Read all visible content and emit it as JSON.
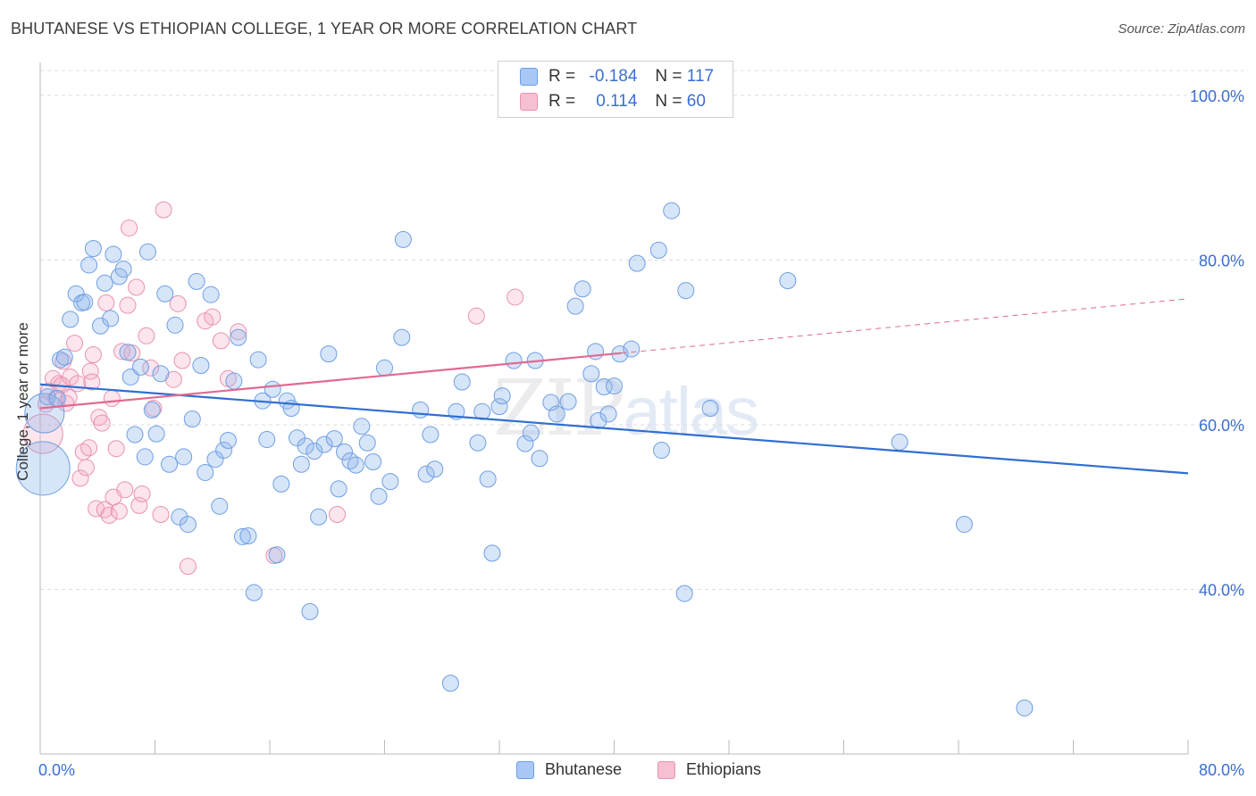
{
  "header": {
    "title": "BHUTANESE VS ETHIOPIAN COLLEGE, 1 YEAR OR MORE CORRELATION CHART",
    "source": "Source: ZipAtlas.com"
  },
  "legend": {
    "rows": [
      {
        "r_label": "R =",
        "r_value": "-0.184",
        "n_label": "N =",
        "n_value": "117",
        "color": "#a9c8f5",
        "border": "#6e9fe3"
      },
      {
        "r_label": "R =",
        "r_value": "0.114",
        "n_label": "N =",
        "n_value": "60",
        "color": "#f7bfd2",
        "border": "#e892b0"
      }
    ],
    "bottom": [
      "Bhutanese",
      "Ethiopians"
    ]
  },
  "watermark": {
    "zip": "ZIP",
    "atlas": "atlas"
  },
  "chart_data": {
    "type": "scatter",
    "title": "BHUTANESE VS ETHIOPIAN COLLEGE, 1 YEAR OR MORE CORRELATION CHART",
    "xlabel": "",
    "ylabel": "College, 1 year or more",
    "xlim": [
      0,
      80
    ],
    "ylim": [
      20,
      104
    ],
    "x_tick_labels": [
      "0.0%",
      "80.0%"
    ],
    "y_tick_labels": [
      "100.0%",
      "80.0%",
      "60.0%",
      "40.0%"
    ],
    "y_ticks": [
      100,
      80,
      60,
      40
    ],
    "grid": true,
    "legend_position": "top-center",
    "colors": {
      "bhutanese_fill": "rgba(140,180,235,0.35)",
      "bhutanese_stroke": "#6e9fe3",
      "bhutanese_line": "#2f6fd0",
      "ethiopians_fill": "rgba(245,170,195,0.30)",
      "ethiopians_stroke": "#e892b0",
      "ethiopians_line": "#e06a92",
      "tick_label": "#3a6fd0"
    },
    "series": [
      {
        "name": "Bhutanese",
        "trend": {
          "x": [
            0,
            80
          ],
          "y": [
            64.9,
            54.1
          ]
        },
        "points": [
          [
            0.2,
            54.7
          ],
          [
            0.3,
            61.4
          ],
          [
            0.5,
            63.4
          ],
          [
            1.2,
            63.2
          ],
          [
            1.4,
            67.9
          ],
          [
            1.7,
            68.2
          ],
          [
            2.1,
            72.8
          ],
          [
            2.5,
            75.9
          ],
          [
            2.9,
            74.8
          ],
          [
            3.1,
            74.9
          ],
          [
            3.4,
            79.4
          ],
          [
            3.7,
            81.4
          ],
          [
            4.2,
            72.0
          ],
          [
            4.5,
            77.2
          ],
          [
            4.9,
            72.9
          ],
          [
            5.1,
            80.7
          ],
          [
            5.5,
            78.0
          ],
          [
            5.8,
            78.9
          ],
          [
            6.1,
            68.8
          ],
          [
            6.3,
            65.8
          ],
          [
            6.6,
            58.8
          ],
          [
            7.0,
            67.0
          ],
          [
            7.3,
            56.1
          ],
          [
            7.5,
            81.0
          ],
          [
            7.8,
            61.8
          ],
          [
            8.1,
            58.9
          ],
          [
            8.4,
            66.2
          ],
          [
            8.7,
            75.9
          ],
          [
            9.0,
            55.2
          ],
          [
            9.4,
            72.1
          ],
          [
            9.7,
            48.8
          ],
          [
            10.0,
            56.1
          ],
          [
            10.3,
            47.9
          ],
          [
            10.6,
            60.7
          ],
          [
            10.9,
            77.4
          ],
          [
            11.2,
            67.2
          ],
          [
            11.5,
            54.2
          ],
          [
            11.9,
            75.8
          ],
          [
            12.2,
            55.8
          ],
          [
            12.5,
            50.1
          ],
          [
            12.8,
            56.9
          ],
          [
            13.1,
            58.1
          ],
          [
            13.5,
            65.3
          ],
          [
            13.8,
            70.6
          ],
          [
            14.1,
            46.4
          ],
          [
            14.5,
            46.5
          ],
          [
            14.9,
            39.6
          ],
          [
            15.2,
            67.9
          ],
          [
            15.5,
            62.9
          ],
          [
            15.8,
            58.2
          ],
          [
            16.2,
            64.3
          ],
          [
            16.5,
            44.2
          ],
          [
            16.8,
            52.8
          ],
          [
            17.2,
            62.9
          ],
          [
            17.5,
            62.0
          ],
          [
            17.9,
            58.4
          ],
          [
            18.2,
            55.2
          ],
          [
            18.5,
            57.4
          ],
          [
            18.8,
            37.3
          ],
          [
            19.1,
            56.8
          ],
          [
            19.4,
            48.8
          ],
          [
            19.8,
            57.6
          ],
          [
            20.1,
            68.6
          ],
          [
            20.5,
            58.3
          ],
          [
            20.8,
            52.2
          ],
          [
            21.2,
            56.7
          ],
          [
            21.6,
            55.6
          ],
          [
            22.0,
            55.1
          ],
          [
            22.4,
            59.8
          ],
          [
            22.8,
            57.8
          ],
          [
            23.2,
            55.5
          ],
          [
            23.6,
            51.3
          ],
          [
            24.0,
            66.9
          ],
          [
            24.4,
            53.1
          ],
          [
            25.2,
            70.6
          ],
          [
            25.3,
            82.5
          ],
          [
            26.5,
            61.8
          ],
          [
            26.9,
            54.0
          ],
          [
            27.2,
            58.8
          ],
          [
            27.5,
            54.6
          ],
          [
            28.6,
            28.6
          ],
          [
            29.0,
            61.6
          ],
          [
            29.4,
            65.2
          ],
          [
            30.5,
            57.8
          ],
          [
            30.8,
            61.6
          ],
          [
            31.2,
            53.4
          ],
          [
            31.5,
            44.4
          ],
          [
            32.0,
            62.2
          ],
          [
            32.2,
            63.5
          ],
          [
            33.0,
            67.8
          ],
          [
            33.8,
            57.7
          ],
          [
            34.2,
            59.0
          ],
          [
            34.5,
            67.8
          ],
          [
            34.8,
            55.9
          ],
          [
            35.6,
            62.7
          ],
          [
            36.0,
            61.3
          ],
          [
            36.8,
            62.8
          ],
          [
            37.3,
            74.4
          ],
          [
            37.8,
            76.5
          ],
          [
            38.4,
            66.2
          ],
          [
            38.7,
            68.9
          ],
          [
            38.9,
            60.5
          ],
          [
            39.3,
            64.6
          ],
          [
            39.6,
            61.3
          ],
          [
            40.0,
            64.7
          ],
          [
            40.4,
            68.6
          ],
          [
            41.2,
            69.2
          ],
          [
            41.6,
            79.6
          ],
          [
            43.1,
            81.2
          ],
          [
            43.3,
            56.9
          ],
          [
            44.0,
            86.0
          ],
          [
            44.9,
            39.5
          ],
          [
            45.0,
            76.3
          ],
          [
            46.7,
            62.0
          ],
          [
            52.1,
            77.5
          ],
          [
            59.9,
            57.9
          ],
          [
            64.4,
            47.9
          ],
          [
            68.6,
            25.6
          ]
        ],
        "sizes": {
          "0": 30,
          "1": 22
        }
      },
      {
        "name": "Ethiopians",
        "trend": {
          "x": [
            0,
            40.5
          ],
          "y": [
            62.0,
            68.7
          ]
        },
        "trend_dashed": {
          "x": [
            40.5,
            80
          ],
          "y": [
            68.7,
            75.3
          ]
        },
        "points": [
          [
            0.2,
            58.9
          ],
          [
            0.4,
            62.5
          ],
          [
            0.6,
            64.1
          ],
          [
            0.9,
            65.6
          ],
          [
            1.1,
            63.2
          ],
          [
            1.3,
            65.0
          ],
          [
            1.5,
            64.8
          ],
          [
            1.6,
            67.7
          ],
          [
            1.8,
            62.6
          ],
          [
            2.0,
            63.3
          ],
          [
            2.1,
            65.8
          ],
          [
            2.4,
            69.9
          ],
          [
            2.6,
            65.0
          ],
          [
            2.8,
            53.5
          ],
          [
            3.0,
            56.7
          ],
          [
            3.2,
            54.8
          ],
          [
            3.4,
            57.2
          ],
          [
            3.5,
            66.5
          ],
          [
            3.6,
            65.2
          ],
          [
            3.7,
            68.5
          ],
          [
            3.9,
            49.8
          ],
          [
            4.1,
            60.9
          ],
          [
            4.3,
            60.2
          ],
          [
            4.5,
            49.7
          ],
          [
            4.6,
            74.8
          ],
          [
            4.8,
            49.0
          ],
          [
            5.0,
            63.2
          ],
          [
            5.1,
            51.2
          ],
          [
            5.3,
            57.1
          ],
          [
            5.5,
            49.5
          ],
          [
            5.7,
            68.9
          ],
          [
            5.9,
            52.1
          ],
          [
            6.1,
            74.5
          ],
          [
            6.2,
            83.9
          ],
          [
            6.4,
            68.7
          ],
          [
            6.7,
            76.7
          ],
          [
            6.9,
            50.2
          ],
          [
            7.1,
            51.6
          ],
          [
            7.4,
            70.8
          ],
          [
            7.7,
            66.9
          ],
          [
            7.9,
            62.0
          ],
          [
            8.4,
            49.1
          ],
          [
            8.6,
            86.1
          ],
          [
            9.3,
            65.5
          ],
          [
            9.6,
            74.7
          ],
          [
            9.9,
            67.8
          ],
          [
            10.3,
            42.8
          ],
          [
            11.5,
            72.6
          ],
          [
            12.0,
            73.1
          ],
          [
            12.6,
            70.2
          ],
          [
            13.1,
            65.6
          ],
          [
            13.8,
            71.3
          ],
          [
            16.3,
            44.1
          ],
          [
            20.7,
            49.1
          ],
          [
            30.4,
            73.2
          ],
          [
            33.1,
            75.5
          ]
        ],
        "sizes": {
          "0": 22
        }
      }
    ]
  }
}
